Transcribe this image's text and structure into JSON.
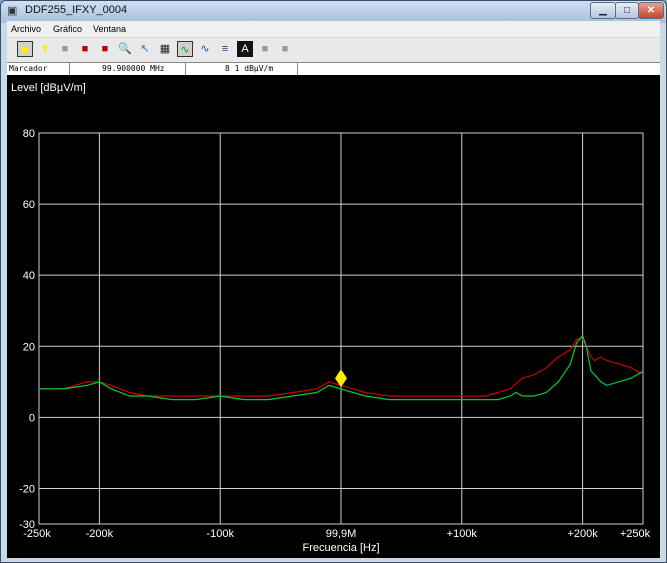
{
  "window": {
    "title": "DDF255_IFXY_0004",
    "icon": "app-window-icon"
  },
  "menu": [
    {
      "label": "Archivo"
    },
    {
      "label": "Gráfico"
    },
    {
      "label": "Ventana"
    }
  ],
  "toolbar": [
    {
      "icon": "marker-diamond-icon",
      "glyph": "◆",
      "color": "#ffee00",
      "selected": true
    },
    {
      "icon": "marker-down-icon",
      "glyph": "▼",
      "color": "#ffee00",
      "selected": false
    },
    {
      "icon": "gray-square-icon",
      "glyph": "■",
      "color": "#9a9a9a",
      "selected": false
    },
    {
      "icon": "red-trace-icon",
      "glyph": "■",
      "color": "#c00000",
      "selected": false
    },
    {
      "icon": "red-trace-alt-icon",
      "glyph": "■",
      "color": "#c00000",
      "selected": false
    },
    {
      "icon": "zoom-icon",
      "glyph": "🔍",
      "color": "#666",
      "selected": false
    },
    {
      "icon": "cursor-icon",
      "glyph": "↖",
      "color": "#1e7ad8",
      "selected": false
    },
    {
      "icon": "mode-icon",
      "glyph": "▦",
      "color": "#222",
      "selected": false
    },
    {
      "icon": "trace-green-icon",
      "glyph": "∿",
      "color": "#00a000",
      "selected": true
    },
    {
      "icon": "trace-blue-icon",
      "glyph": "∿",
      "color": "#0050c0",
      "selected": false
    },
    {
      "icon": "bars-icon",
      "glyph": "≡",
      "color": "#1a3a8a",
      "selected": false
    },
    {
      "icon": "text-icon",
      "glyph": "A",
      "color": "#fff",
      "selected": false
    },
    {
      "icon": "gray-square-icon",
      "glyph": "■",
      "color": "#9a9a9a",
      "selected": false
    },
    {
      "icon": "gray-square-icon",
      "glyph": "■",
      "color": "#9a9a9a",
      "selected": false
    }
  ],
  "marker_bar": {
    "label": "Marcador",
    "freq": "99.900000  MHz",
    "level": "8 1  dBµV/m"
  },
  "chart_data": {
    "type": "line",
    "ylabel": "Level [dBµV/m]",
    "xlabel": "Frecuencia [Hz]",
    "ylim": [
      -30,
      80
    ],
    "xlim": [
      -250,
      250
    ],
    "yticks": [
      -30,
      -20,
      0,
      20,
      40,
      60,
      80
    ],
    "ytick_labels": [
      "-30",
      "-20",
      "0",
      "20",
      "40",
      "60",
      "80"
    ],
    "gridlines_y": [
      -20,
      0,
      20,
      40,
      60,
      80
    ],
    "xticks": [
      -250,
      -200,
      -100,
      0,
      100,
      200,
      250
    ],
    "xtick_labels": [
      "-250k",
      "-200k",
      "-100k",
      "99,9M",
      "+100k",
      "+200k",
      "+250k"
    ],
    "gridlines_x": [
      -200,
      -100,
      0,
      100,
      200
    ],
    "grid": true,
    "background": "#000000",
    "marker": {
      "x": 0,
      "y": 11,
      "color": "#ffee00"
    },
    "series": [
      {
        "color": "#cc0000",
        "x": [
          -250,
          -230,
          -210,
          -200,
          -190,
          -175,
          -160,
          -140,
          -120,
          -100,
          -80,
          -60,
          -40,
          -20,
          -10,
          0,
          10,
          20,
          40,
          60,
          80,
          100,
          110,
          115,
          120,
          130,
          140,
          150,
          160,
          170,
          180,
          190,
          195,
          200,
          203,
          207,
          210,
          215,
          220,
          230,
          240,
          250
        ],
        "values": [
          8,
          8,
          10,
          10,
          9,
          7,
          6,
          6,
          6,
          6,
          6,
          6,
          7,
          8,
          10,
          9,
          8,
          7,
          6,
          6,
          6,
          6,
          6,
          6,
          6,
          7,
          8,
          11,
          12,
          14,
          17,
          19,
          22,
          22,
          20,
          17,
          16,
          17,
          16,
          15,
          14,
          12
        ]
      },
      {
        "color": "#00cc33",
        "x": [
          -250,
          -230,
          -210,
          -200,
          -190,
          -175,
          -160,
          -140,
          -120,
          -100,
          -80,
          -60,
          -40,
          -20,
          -10,
          0,
          10,
          20,
          40,
          60,
          80,
          100,
          110,
          115,
          120,
          130,
          140,
          145,
          150,
          160,
          170,
          180,
          190,
          195,
          200,
          203,
          207,
          210,
          215,
          220,
          230,
          240,
          250
        ],
        "values": [
          8,
          8,
          9,
          10,
          8,
          6,
          6,
          5,
          5,
          6,
          5,
          5,
          6,
          7,
          9,
          8,
          7,
          6,
          5,
          5,
          5,
          5,
          5,
          5,
          5,
          5,
          6,
          7,
          6,
          6,
          7,
          10,
          15,
          21,
          23,
          20,
          13,
          12,
          10,
          9,
          10,
          11,
          13
        ]
      }
    ]
  }
}
